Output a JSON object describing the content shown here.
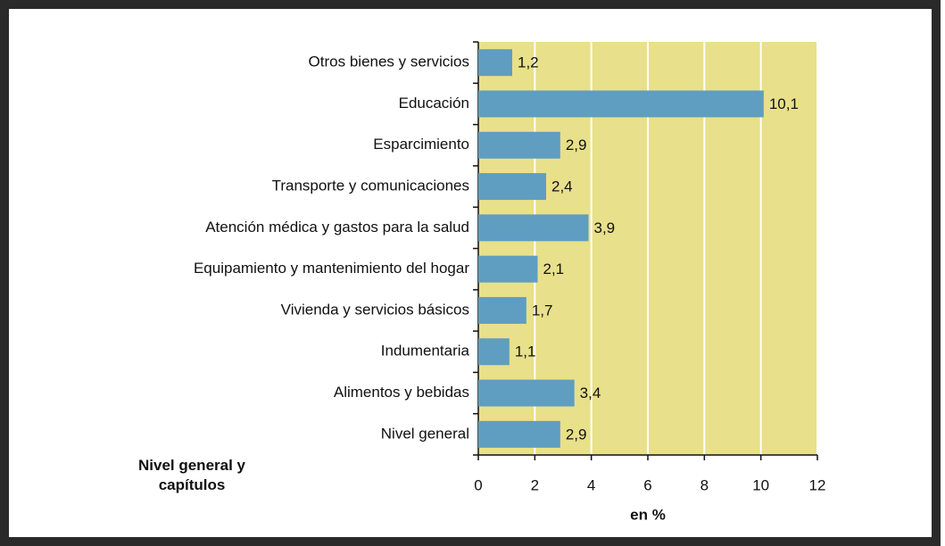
{
  "chart_data": {
    "type": "hbar",
    "categories": [
      "Otros bienes y servicios",
      "Educación",
      "Esparcimiento",
      "Transporte y comunicaciones",
      "Atención médica y gastos para la salud",
      "Equipamiento y mantenimiento del hogar",
      "Vivienda y servicios básicos",
      "Indumentaria",
      "Alimentos y bebidas",
      "Nivel general"
    ],
    "values": [
      1.2,
      10.1,
      2.9,
      2.4,
      3.9,
      2.1,
      1.7,
      1.1,
      3.4,
      2.9
    ],
    "value_labels": [
      "1,2",
      "10,1",
      "2,9",
      "2,4",
      "3,9",
      "2,1",
      "1,7",
      "1,1",
      "3,4",
      "2,9"
    ],
    "color": "#5f9ec0",
    "plot_background": "#e8e08a",
    "grid": true,
    "xlim": [
      0,
      12
    ],
    "xticks": [
      0,
      2,
      4,
      6,
      8,
      10,
      12
    ],
    "xlabel": "en %",
    "ylabel": "Nivel general y capítulos"
  }
}
